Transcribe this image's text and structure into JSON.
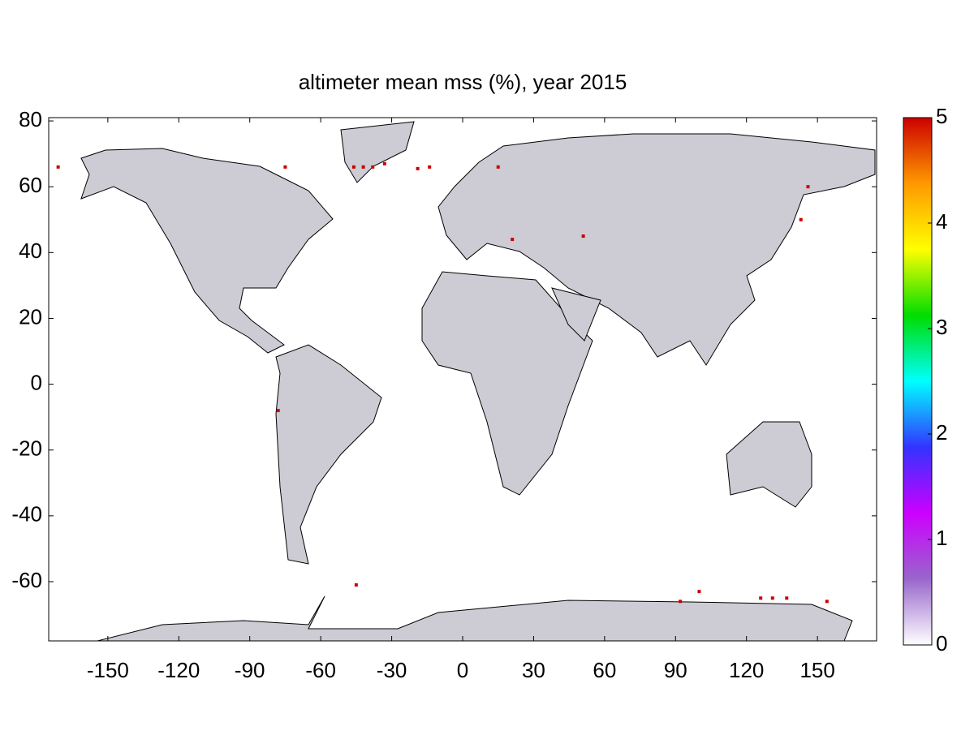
{
  "chart_data": {
    "type": "map",
    "title": "altimeter mean mss (%), year 2015",
    "xlim": [
      -175,
      175
    ],
    "ylim": [
      -78,
      81
    ],
    "xticks": [
      -150,
      -120,
      -90,
      -60,
      -30,
      0,
      30,
      60,
      90,
      120,
      150
    ],
    "yticks": [
      -60,
      -40,
      -20,
      0,
      20,
      40,
      60,
      80
    ],
    "clim": [
      0,
      5
    ],
    "cticks": [
      0,
      1,
      2,
      3,
      4,
      5
    ],
    "colormap": [
      "#ffffff",
      "#9966cc",
      "#cc00ff",
      "#3333ff",
      "#00ffff",
      "#00dd00",
      "#ffff00",
      "#ff9900",
      "#cc0000"
    ],
    "points": {
      "lon": [
        -171,
        -75,
        -46,
        -42,
        -38,
        -33,
        -19,
        -14,
        15,
        21,
        51,
        143,
        146,
        -78,
        -45,
        92,
        100,
        126,
        131,
        137,
        154
      ],
      "lat": [
        66,
        66,
        66,
        66,
        66,
        67,
        65.5,
        66,
        66,
        44,
        45,
        50,
        60,
        -8,
        -61,
        -66,
        -63,
        -65,
        -65,
        -65,
        -66
      ],
      "values": [
        5,
        5,
        5,
        5,
        5,
        5,
        5,
        5,
        5,
        5,
        5,
        5,
        5,
        5,
        5,
        5,
        5,
        5,
        5,
        5,
        5
      ]
    }
  }
}
